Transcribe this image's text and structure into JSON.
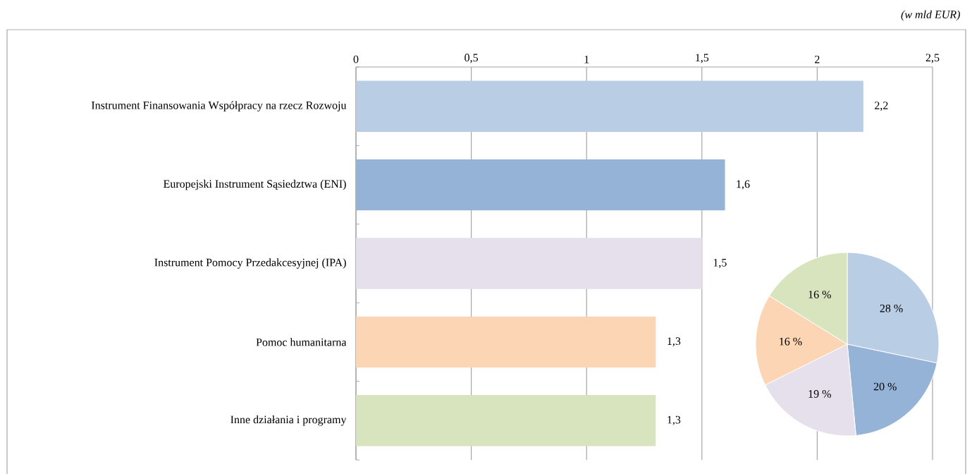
{
  "chart_data": [
    {
      "type": "bar",
      "orientation": "horizontal",
      "annotations": [
        "(w mld EUR)"
      ],
      "categories": [
        "Instrument Finansowania Współpracy na rzecz Rozwoju",
        "Europejski Instrument Sąsiedztwa (ENI)",
        "Instrument Pomocy Przedakcesyjnej (IPA)",
        "Pomoc humanitarna",
        "Inne działania i programy"
      ],
      "values": [
        2.2,
        1.6,
        1.5,
        1.3,
        1.3
      ],
      "colors": [
        "#b9cde5",
        "#95b3d7",
        "#e6e0ec",
        "#fcd5b5",
        "#d7e4bd"
      ],
      "value_labels": [
        "2,2",
        "1,6",
        "1,5",
        "1,3",
        "1,3"
      ],
      "xlim": [
        0,
        2.5
      ],
      "xticks": [
        0,
        {
          "value": 0.5,
          "label": "0,5"
        },
        1,
        {
          "value": 1.5,
          "label": "1,5"
        },
        2,
        {
          "value": 2.5,
          "label": "2,5"
        }
      ],
      "grid": "x"
    },
    {
      "type": "pie",
      "categories": [
        null,
        null,
        null,
        null,
        null
      ],
      "values": [
        28,
        20,
        19,
        16,
        16
      ],
      "colors": [
        "#b9cde5",
        "#95b3d7",
        "#e6e0ec",
        "#fcd5b5",
        "#d7e4bd"
      ],
      "value_labels": [
        "28 %",
        "20 %",
        "19 %",
        "16 %",
        "16 %"
      ]
    }
  ]
}
